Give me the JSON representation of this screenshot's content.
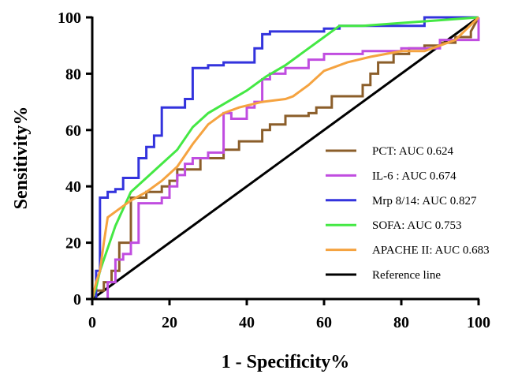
{
  "chart_data": {
    "type": "line",
    "title": "",
    "xlabel": "1 - Specificity%",
    "ylabel": "Sensitivity%",
    "xlim": [
      0,
      100
    ],
    "ylim": [
      0,
      100
    ],
    "xticks": [
      "0",
      "20",
      "40",
      "60",
      "80",
      "100"
    ],
    "yticks": [
      "0",
      "20",
      "40",
      "60",
      "80",
      "100"
    ],
    "grid": false,
    "legend_position": "bottom-right",
    "series": [
      {
        "name": "PCT: AUC 0.624",
        "color": "#8B5E2A",
        "x": [
          0,
          1,
          1,
          3,
          3,
          5,
          5,
          7,
          7,
          10,
          10,
          14,
          14,
          18,
          18,
          20,
          20,
          22,
          22,
          28,
          28,
          34,
          34,
          38,
          38,
          44,
          44,
          46,
          46,
          50,
          50,
          56,
          56,
          58,
          58,
          62,
          62,
          70,
          70,
          72,
          72,
          74,
          74,
          78,
          78,
          82,
          82,
          86,
          86,
          90,
          90,
          94,
          94,
          98,
          98,
          100
        ],
        "y": [
          0,
          0,
          3,
          3,
          6,
          6,
          10,
          10,
          20,
          20,
          36,
          36,
          38,
          38,
          40,
          40,
          42,
          42,
          46,
          46,
          50,
          50,
          53,
          53,
          56,
          56,
          60,
          60,
          62,
          62,
          65,
          65,
          66,
          66,
          68,
          68,
          72,
          72,
          76,
          76,
          80,
          80,
          84,
          84,
          87,
          87,
          89,
          89,
          90,
          90,
          91,
          91,
          93,
          93,
          95,
          100
        ]
      },
      {
        "name": "IL-6 : AUC 0.674",
        "color": "#C04DE0",
        "x": [
          0,
          4,
          4,
          6,
          6,
          8,
          8,
          10,
          10,
          12,
          12,
          18,
          18,
          20,
          20,
          22,
          22,
          24,
          24,
          26,
          26,
          30,
          30,
          34,
          34,
          36,
          36,
          40,
          40,
          42,
          42,
          44,
          44,
          46,
          46,
          50,
          50,
          56,
          56,
          60,
          60,
          70,
          70,
          80,
          80,
          90,
          90,
          100,
          100
        ],
        "y": [
          0,
          0,
          6,
          6,
          14,
          14,
          16,
          16,
          20,
          20,
          34,
          34,
          36,
          36,
          40,
          40,
          44,
          44,
          48,
          48,
          50,
          50,
          52,
          52,
          66,
          66,
          64,
          64,
          68,
          68,
          70,
          70,
          78,
          78,
          80,
          80,
          82,
          82,
          85,
          85,
          87,
          87,
          88,
          88,
          89,
          89,
          92,
          92,
          100
        ]
      },
      {
        "name": "Mrp 8/14: AUC 0.827",
        "color": "#3333DD",
        "x": [
          0,
          1,
          1,
          2,
          2,
          4,
          4,
          6,
          6,
          8,
          8,
          12,
          12,
          14,
          14,
          16,
          16,
          18,
          18,
          22,
          22,
          24,
          24,
          26,
          26,
          30,
          30,
          34,
          34,
          36,
          36,
          42,
          42,
          44,
          44,
          46,
          46,
          60,
          60,
          62,
          62,
          64,
          64,
          86,
          86,
          100
        ],
        "y": [
          0,
          0,
          10,
          10,
          36,
          36,
          38,
          38,
          39,
          39,
          43,
          43,
          50,
          50,
          54,
          54,
          58,
          58,
          68,
          68,
          68,
          68,
          71,
          71,
          82,
          82,
          83,
          83,
          84,
          84,
          84,
          84,
          89,
          89,
          94,
          94,
          95,
          95,
          96,
          96,
          96,
          96,
          97,
          97,
          100,
          100
        ]
      },
      {
        "name": "SOFA: AUC 0.753",
        "color": "#44E844",
        "x": [
          0,
          1,
          2,
          3,
          4,
          5,
          6,
          8,
          10,
          14,
          18,
          22,
          26,
          30,
          35,
          40,
          45,
          50,
          55,
          60,
          64,
          70,
          80,
          90,
          100
        ],
        "y": [
          0,
          4,
          10,
          14,
          18,
          22,
          26,
          32,
          38,
          43,
          48,
          53,
          61,
          66,
          70,
          74,
          79,
          83,
          88,
          93,
          97,
          97,
          98,
          99,
          100
        ]
      },
      {
        "name": "APACHE II: AUC 0.683",
        "color": "#F5A340",
        "x": [
          0,
          1,
          2,
          3,
          4,
          6,
          8,
          10,
          14,
          18,
          22,
          26,
          30,
          34,
          38,
          44,
          50,
          52,
          56,
          60,
          66,
          72,
          76,
          80,
          86,
          90,
          94,
          100
        ],
        "y": [
          0,
          6,
          10,
          20,
          29,
          31,
          33,
          35,
          38,
          42,
          47,
          55,
          62,
          66,
          68,
          70,
          71,
          72,
          76,
          81,
          84,
          86,
          87,
          88,
          88,
          90,
          92,
          100
        ]
      },
      {
        "name": "Reference line",
        "color": "#000000",
        "x": [
          0,
          100
        ],
        "y": [
          0,
          100
        ]
      }
    ]
  }
}
